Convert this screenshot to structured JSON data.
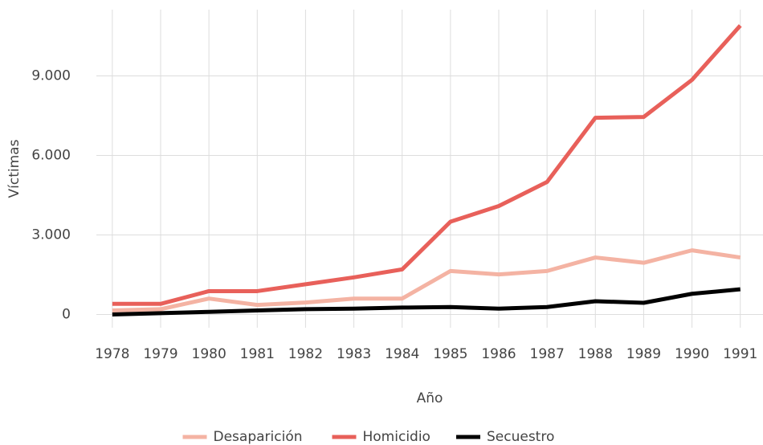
{
  "chart_data": {
    "type": "line",
    "x_label": "Año",
    "y_label": "Víctimas",
    "x": [
      1978,
      1979,
      1980,
      1981,
      1982,
      1983,
      1984,
      1985,
      1986,
      1987,
      1988,
      1989,
      1990,
      1991
    ],
    "series": [
      {
        "name": "Desaparición",
        "color": "#f4b3a3",
        "values": [
          150,
          200,
          600,
          360,
          450,
          600,
          600,
          1640,
          1510,
          1640,
          2150,
          1950,
          2420,
          2150
        ]
      },
      {
        "name": "Homicidio",
        "color": "#e8605a",
        "values": [
          400,
          400,
          880,
          880,
          1140,
          1400,
          1700,
          3500,
          4090,
          5000,
          7420,
          7450,
          8850,
          10900
        ]
      },
      {
        "name": "Secuestro",
        "color": "#000000",
        "values": [
          0,
          50,
          100,
          150,
          200,
          220,
          260,
          280,
          220,
          280,
          500,
          440,
          780,
          950
        ]
      }
    ],
    "xlim": [
      1977.67,
      1991.47
    ],
    "xticks": [
      1978,
      1979,
      1980,
      1981,
      1982,
      1983,
      1984,
      1985,
      1986,
      1987,
      1988,
      1989,
      1990,
      1991
    ],
    "ylim": [
      -500,
      11500
    ],
    "yticks": [
      {
        "value": 0,
        "label": "0"
      },
      {
        "value": 3000,
        "label": "3.000"
      },
      {
        "value": 6000,
        "label": "6.000"
      },
      {
        "value": 9000,
        "label": "9.000"
      }
    ],
    "grid": true,
    "legend": "bottom"
  }
}
